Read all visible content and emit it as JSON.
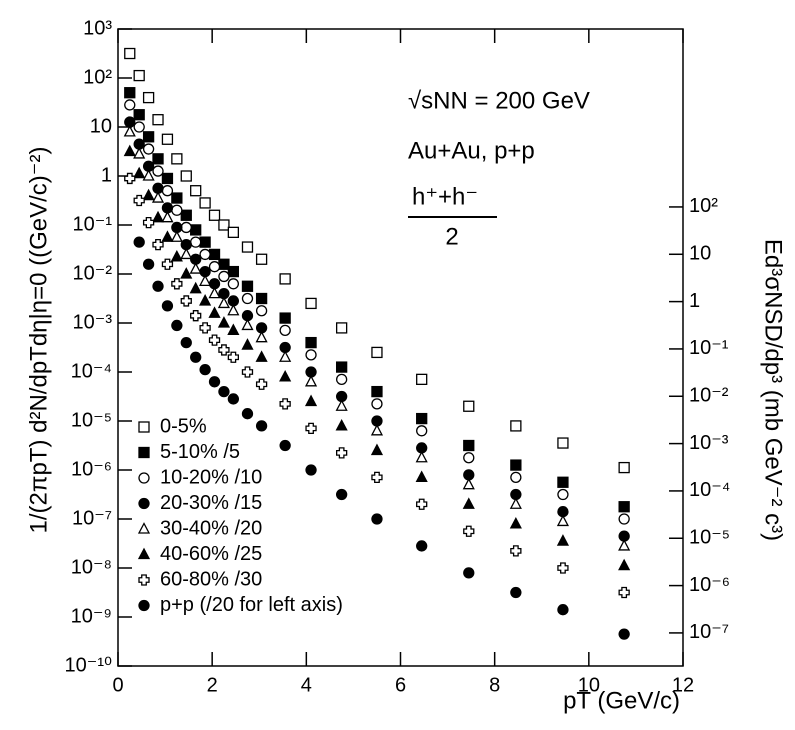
{
  "chart_data": {
    "type": "scatter",
    "x_label": "pT (GeV/c)",
    "y_label": "1/(2πpT) d²N/dpTdη|η=0 ((GeV/c)⁻²)",
    "y2_label": "Ed³σNSD/dp³ (mb GeV⁻² c³)",
    "annotations": [
      "√sNN = 200 GeV",
      "Au+Au, p+p",
      "h⁺+h⁻",
      "2"
    ],
    "x": [
      0.25,
      0.45,
      0.65,
      0.85,
      1.05,
      1.25,
      1.45,
      1.65,
      1.85,
      2.05,
      2.25,
      2.45,
      2.75,
      3.05,
      3.55,
      4.1,
      4.75,
      5.5,
      6.45,
      7.45,
      8.45,
      9.45,
      10.75
    ],
    "xlim": [
      0,
      12
    ],
    "xticks": [
      0,
      2,
      4,
      6,
      8,
      10,
      12
    ],
    "ylim": [
      1e-10,
      1000
    ],
    "log_y": true,
    "yticks": [
      {
        "value": 1e-10,
        "label": "10⁻¹⁰"
      },
      {
        "value": 1e-09,
        "label": "10⁻⁹"
      },
      {
        "value": 1e-08,
        "label": "10⁻⁸"
      },
      {
        "value": 1e-07,
        "label": "10⁻⁷"
      },
      {
        "value": 1e-06,
        "label": "10⁻⁶"
      },
      {
        "value": 1e-05,
        "label": "10⁻⁵"
      },
      {
        "value": 0.0001,
        "label": "10⁻⁴"
      },
      {
        "value": 0.001,
        "label": "10⁻³"
      },
      {
        "value": 0.01,
        "label": "10⁻²"
      },
      {
        "value": 0.1,
        "label": "10⁻¹"
      },
      1,
      10,
      {
        "value": 100,
        "label": "10²"
      },
      {
        "value": 1000,
        "label": "10³"
      }
    ],
    "y2lim": [
      2e-08,
      575000
    ],
    "y2ticks": [
      {
        "value": 1e-07,
        "label": "10⁻⁷"
      },
      {
        "value": 1e-06,
        "label": "10⁻⁶"
      },
      {
        "value": 1e-05,
        "label": "10⁻⁵"
      },
      {
        "value": 0.0001,
        "label": "10⁻⁴"
      },
      {
        "value": 0.001,
        "label": "10⁻³"
      },
      {
        "value": 0.01,
        "label": "10⁻²"
      },
      {
        "value": 0.1,
        "label": "10⁻¹"
      },
      1,
      10,
      {
        "value": 100,
        "label": "10²"
      }
    ],
    "legend": "lower left",
    "grid": false,
    "series": [
      {
        "name": "0-5%",
        "color": "#000000",
        "marker": "open-square",
        "values": [
          316,
          112,
          39.8,
          14.1,
          5.62,
          2.24,
          1,
          0.501,
          0.282,
          0.158,
          0.1,
          0.0708,
          0.0355,
          0.02,
          0.00794,
          0.00251,
          0.000794,
          0.000251,
          7.08e-05,
          2e-05,
          7.94e-06,
          3.55e-06,
          1.12e-06
        ]
      },
      {
        "name": "5-10% /5",
        "color": "#000000",
        "marker": "filled-square",
        "values": [
          50.1,
          17.8,
          6.31,
          2.24,
          0.891,
          0.355,
          0.158,
          0.0794,
          0.0447,
          0.0251,
          0.0158,
          0.0112,
          0.00562,
          0.00316,
          0.00126,
          0.000398,
          0.000126,
          3.98e-05,
          1.12e-05,
          3.16e-06,
          1.26e-06,
          5.62e-07,
          1.78e-07
        ]
      },
      {
        "name": "10-20% /10",
        "color": "#000000",
        "marker": "open-circle",
        "values": [
          28.2,
          10,
          3.55,
          1.26,
          0.501,
          0.2,
          0.0891,
          0.0447,
          0.0251,
          0.0141,
          0.00891,
          0.00631,
          0.00316,
          0.00178,
          0.000708,
          0.000224,
          7.08e-05,
          2.24e-05,
          6.31e-06,
          1.78e-06,
          7.08e-07,
          3.16e-07,
          1e-07
        ]
      },
      {
        "name": "20-30% /15",
        "color": "#000000",
        "marker": "filled-circle",
        "values": [
          12.6,
          4.47,
          1.58,
          0.562,
          0.224,
          0.0891,
          0.0398,
          0.02,
          0.0112,
          0.00631,
          0.00398,
          0.00282,
          0.00141,
          0.000794,
          0.000316,
          0.0001,
          3.16e-05,
          1e-05,
          2.82e-06,
          7.94e-07,
          3.16e-07,
          1.41e-07,
          4.47e-08
        ]
      },
      {
        "name": "30-40% /20",
        "color": "#000000",
        "marker": "open-triangle",
        "values": [
          7.94,
          2.82,
          1,
          0.355,
          0.141,
          0.0562,
          0.0251,
          0.0126,
          0.00708,
          0.00398,
          0.00251,
          0.00178,
          0.000891,
          0.000501,
          0.0002,
          6.31e-05,
          2e-05,
          6.31e-06,
          1.78e-06,
          5.01e-07,
          2e-07,
          8.91e-08,
          2.82e-08
        ]
      },
      {
        "name": "40-60% /25",
        "color": "#000000",
        "marker": "filled-triangle",
        "values": [
          3.16,
          1.12,
          0.398,
          0.141,
          0.0562,
          0.0224,
          0.01,
          0.00501,
          0.00282,
          0.00158,
          0.001,
          0.000708,
          0.000355,
          0.0002,
          7.94e-05,
          2.51e-05,
          7.94e-06,
          2.51e-06,
          7.08e-07,
          2e-07,
          7.94e-08,
          3.55e-08,
          1.12e-08
        ]
      },
      {
        "name": "60-80% /30",
        "color": "#000000",
        "marker": "open-cross",
        "values": [
          0.891,
          0.316,
          0.112,
          0.0398,
          0.0158,
          0.00631,
          0.00282,
          0.00141,
          0.000794,
          0.000447,
          0.000282,
          0.0002,
          0.0001,
          5.62e-05,
          2.24e-05,
          7.08e-06,
          2.24e-06,
          7.08e-07,
          2e-07,
          5.62e-08,
          2.24e-08,
          1e-08,
          3.16e-09
        ]
      },
      {
        "name": "p+p (/20 for left axis)",
        "color": "#000000",
        "marker": "filled-circle",
        "values": [
          null,
          0.0447,
          0.0158,
          0.00562,
          0.00224,
          0.000891,
          0.000398,
          0.0002,
          0.000112,
          6.31e-05,
          3.98e-05,
          2.82e-05,
          1.41e-05,
          7.94e-06,
          3.16e-06,
          1e-06,
          3.16e-07,
          1e-07,
          2.82e-08,
          7.94e-09,
          3.16e-09,
          1.41e-09,
          4.47e-10
        ]
      }
    ]
  }
}
